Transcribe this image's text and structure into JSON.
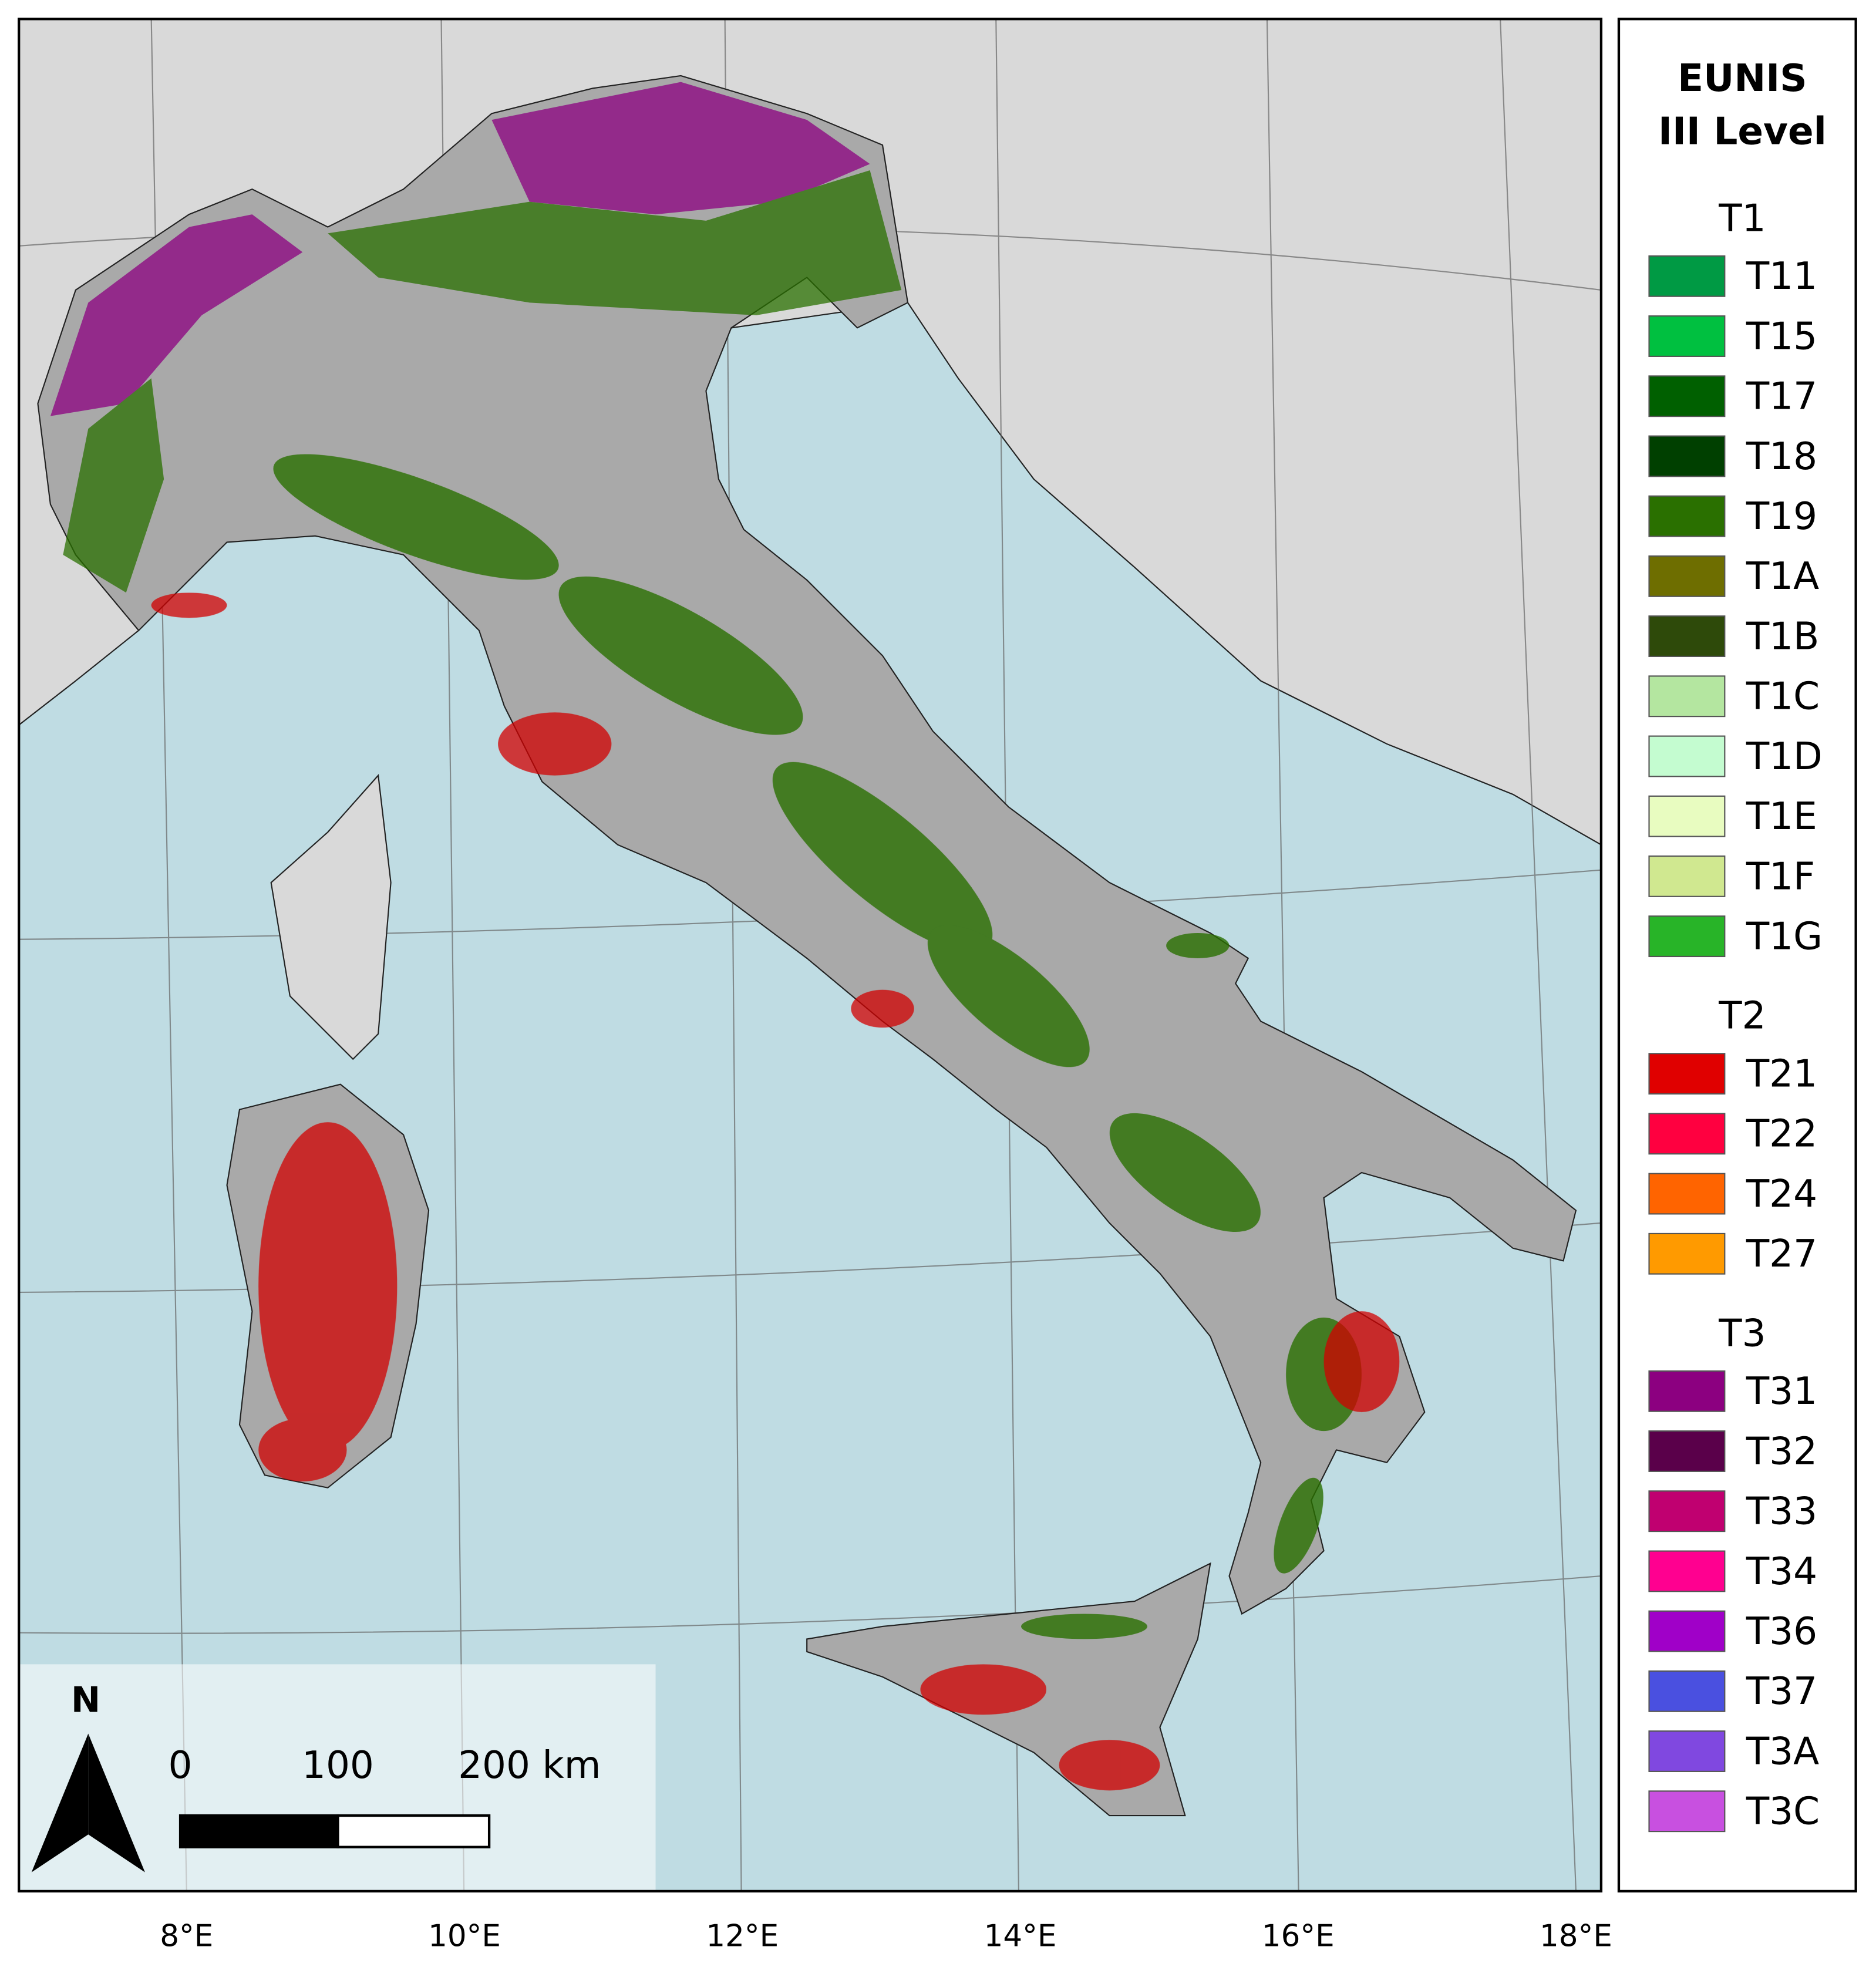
{
  "legend": {
    "title": [
      "EUNIS",
      "III Level"
    ],
    "groups": [
      {
        "name": "T1",
        "items": [
          {
            "label": "T11",
            "color": "#009a44"
          },
          {
            "label": "T15",
            "color": "#00c040"
          },
          {
            "label": "T17",
            "color": "#006000"
          },
          {
            "label": "T18",
            "color": "#004000"
          },
          {
            "label": "T19",
            "color": "#2a7000"
          },
          {
            "label": "T1A",
            "color": "#6e6e00"
          },
          {
            "label": "T1B",
            "color": "#2e4a0a"
          },
          {
            "label": "T1C",
            "color": "#b4e6a0"
          },
          {
            "label": "T1D",
            "color": "#c4fcd0"
          },
          {
            "label": "T1E",
            "color": "#e8fcc0"
          },
          {
            "label": "T1F",
            "color": "#d0e890"
          },
          {
            "label": "T1G",
            "color": "#28b428"
          }
        ]
      },
      {
        "name": "T2",
        "items": [
          {
            "label": "T21",
            "color": "#e00000"
          },
          {
            "label": "T22",
            "color": "#ff0040"
          },
          {
            "label": "T24",
            "color": "#ff6400"
          },
          {
            "label": "T27",
            "color": "#ff9a00"
          }
        ]
      },
      {
        "name": "T3",
        "items": [
          {
            "label": "T31",
            "color": "#8c0080"
          },
          {
            "label": "T32",
            "color": "#5a004a"
          },
          {
            "label": "T33",
            "color": "#c00070"
          },
          {
            "label": "T34",
            "color": "#ff0090"
          },
          {
            "label": "T36",
            "color": "#a000c8"
          },
          {
            "label": "T37",
            "color": "#4a50e0"
          },
          {
            "label": "T3A",
            "color": "#8048e0"
          },
          {
            "label": "T3C",
            "color": "#c850e0"
          }
        ]
      }
    ]
  },
  "north_arrow": "N",
  "scale_bar": [
    "0",
    "100",
    "200 km"
  ],
  "longitude_labels": [
    "8°E",
    "10°E",
    "12°E",
    "14°E",
    "16°E",
    "18°E"
  ]
}
